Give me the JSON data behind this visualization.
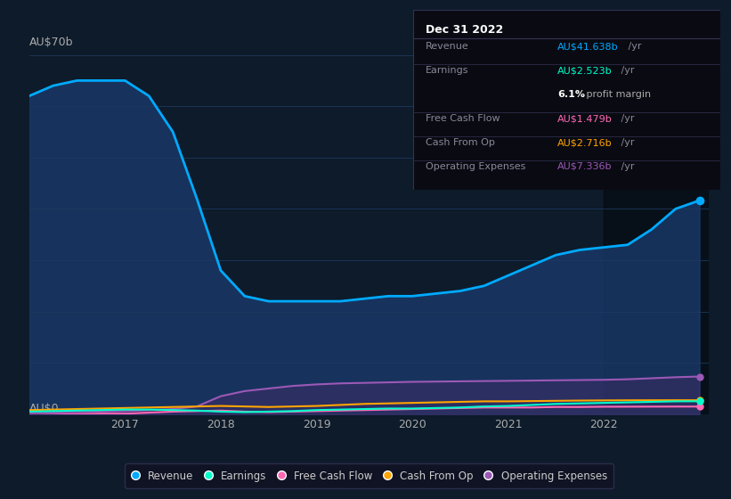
{
  "bg_color": "#0d1b2a",
  "plot_bg_color": "#0d1b2a",
  "grid_color": "#1e3a5f",
  "highlight_bg": "#000000",
  "years": [
    2016.0,
    2016.25,
    2016.5,
    2016.75,
    2017.0,
    2017.25,
    2017.5,
    2017.75,
    2018.0,
    2018.25,
    2018.5,
    2018.75,
    2019.0,
    2019.25,
    2019.5,
    2019.75,
    2020.0,
    2020.25,
    2020.5,
    2020.75,
    2021.0,
    2021.25,
    2021.5,
    2021.75,
    2022.0,
    2022.25,
    2022.5,
    2022.75,
    2023.0
  ],
  "revenue": [
    62,
    64,
    65,
    65,
    65,
    62,
    55,
    42,
    28,
    23,
    22,
    22,
    22,
    22,
    22.5,
    23,
    23,
    23.5,
    24,
    25,
    27,
    29,
    31,
    32,
    32.5,
    33,
    36,
    40,
    41.638
  ],
  "earnings": [
    0.5,
    0.6,
    0.7,
    0.8,
    0.9,
    0.9,
    0.8,
    0.7,
    0.5,
    0.4,
    0.5,
    0.6,
    0.8,
    0.9,
    1.0,
    1.1,
    1.1,
    1.2,
    1.3,
    1.5,
    1.6,
    1.8,
    2.0,
    2.1,
    2.2,
    2.3,
    2.4,
    2.5,
    2.523
  ],
  "free_cash_flow": [
    -0.2,
    -0.1,
    0.0,
    0.1,
    0.1,
    0.3,
    0.5,
    0.6,
    0.7,
    0.5,
    0.4,
    0.5,
    0.6,
    0.7,
    0.8,
    0.9,
    1.0,
    1.1,
    1.2,
    1.3,
    1.3,
    1.3,
    1.4,
    1.4,
    1.45,
    1.46,
    1.47,
    1.48,
    1.479
  ],
  "cash_from_op": [
    0.8,
    0.9,
    1.0,
    1.1,
    1.2,
    1.3,
    1.4,
    1.5,
    1.6,
    1.5,
    1.4,
    1.5,
    1.6,
    1.8,
    2.0,
    2.1,
    2.2,
    2.3,
    2.4,
    2.5,
    2.5,
    2.55,
    2.6,
    2.65,
    2.68,
    2.7,
    2.71,
    2.72,
    2.716
  ],
  "operating_expenses": [
    0.2,
    0.3,
    0.4,
    0.5,
    0.6,
    0.8,
    1.0,
    1.5,
    3.5,
    4.5,
    5.0,
    5.5,
    5.8,
    6.0,
    6.1,
    6.2,
    6.3,
    6.35,
    6.4,
    6.45,
    6.5,
    6.55,
    6.6,
    6.65,
    6.7,
    6.8,
    7.0,
    7.2,
    7.336
  ],
  "revenue_color": "#00aaff",
  "earnings_color": "#00ffcc",
  "fcf_color": "#ff69b4",
  "cashop_color": "#ffa500",
  "opex_color": "#9b59b6",
  "revenue_fill_color": "#1a3a6a",
  "opex_fill_color": "#4a2a6a",
  "ylim": [
    0,
    70
  ],
  "xlim_start": 2016.0,
  "xlim_end": 2023.1,
  "xtick_labels": [
    "2017",
    "2018",
    "2019",
    "2020",
    "2021",
    "2022"
  ],
  "xtick_positions": [
    2017,
    2018,
    2019,
    2020,
    2021,
    2022
  ],
  "info_box": {
    "title": "Dec 31 2022",
    "rows": [
      {
        "label": "Revenue",
        "value": "AU$41.638b",
        "suffix": " /yr",
        "value_color": "#00aaff"
      },
      {
        "label": "Earnings",
        "value": "AU$2.523b",
        "suffix": " /yr",
        "value_color": "#00ffcc"
      },
      {
        "label": "",
        "value": "6.1%",
        "suffix": " profit margin",
        "value_color": "#ffffff",
        "is_margin": true
      },
      {
        "label": "Free Cash Flow",
        "value": "AU$1.479b",
        "suffix": " /yr",
        "value_color": "#ff69b4"
      },
      {
        "label": "Cash From Op",
        "value": "AU$2.716b",
        "suffix": " /yr",
        "value_color": "#ffa500"
      },
      {
        "label": "Operating Expenses",
        "value": "AU$7.336b",
        "suffix": " /yr",
        "value_color": "#9b59b6"
      }
    ]
  },
  "legend": [
    {
      "label": "Revenue",
      "color": "#00aaff"
    },
    {
      "label": "Earnings",
      "color": "#00ffcc"
    },
    {
      "label": "Free Cash Flow",
      "color": "#ff69b4"
    },
    {
      "label": "Cash From Op",
      "color": "#ffa500"
    },
    {
      "label": "Operating Expenses",
      "color": "#9b59b6"
    }
  ],
  "highlight_x_start": 2022.0,
  "highlight_x_end": 2023.1
}
